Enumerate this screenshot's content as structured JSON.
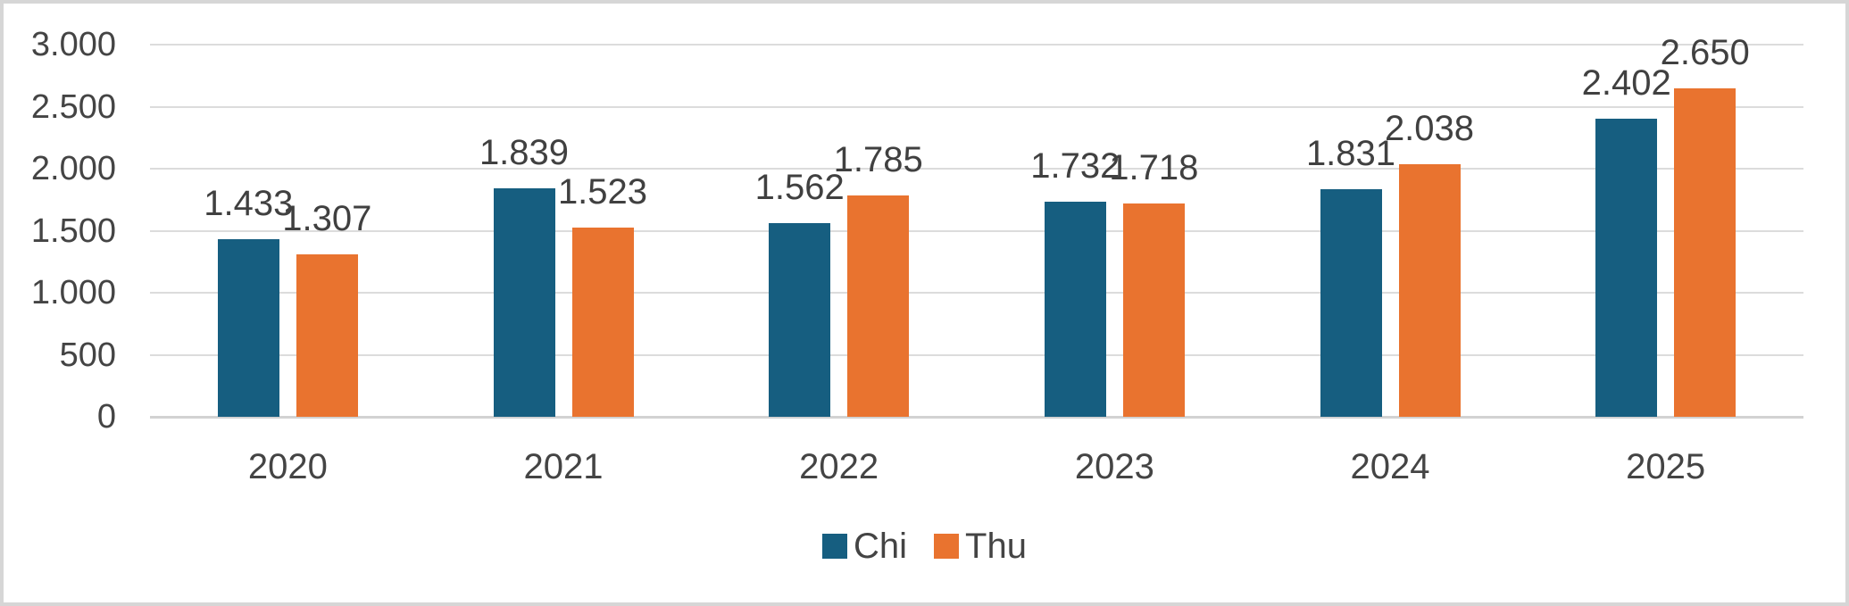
{
  "chart_data": {
    "type": "bar",
    "title": "",
    "categories": [
      "2020",
      "2021",
      "2022",
      "2023",
      "2024",
      "2025"
    ],
    "series": [
      {
        "name": "Chi",
        "color": "#165E80",
        "values": [
          1433,
          1839,
          1562,
          1732,
          1831,
          2402
        ],
        "data_labels": [
          "1.433",
          "1.839",
          "1.562",
          "1.732",
          "1.831",
          "2.402"
        ]
      },
      {
        "name": "Thu",
        "color": "#E9732F",
        "values": [
          1307,
          1523,
          1785,
          1718,
          2038,
          2650
        ],
        "data_labels": [
          "1.307",
          "1.523",
          "1.785",
          "1.718",
          "2.038",
          "2.650"
        ]
      }
    ],
    "y_axis": {
      "min": 0,
      "max": 3000,
      "step": 500,
      "tick_labels": [
        "0",
        "500",
        "1.000",
        "1.500",
        "2.000",
        "2.500",
        "3.000"
      ]
    },
    "x_axis": {
      "tick_labels": [
        "2020",
        "2021",
        "2022",
        "2023",
        "2024",
        "2025"
      ]
    },
    "legend": {
      "position": "bottom",
      "entries": [
        {
          "label": "Chi",
          "color": "#165E80"
        },
        {
          "label": "Thu",
          "color": "#E9732F"
        }
      ]
    },
    "grid": true,
    "number_format": "thousands-dot",
    "colors": {
      "gridline": "#DCDCDC",
      "axis_line": "#D2D2D2",
      "text": "#444444",
      "background": "#FFFFFF",
      "frame_border": "#D6D6D6"
    }
  }
}
